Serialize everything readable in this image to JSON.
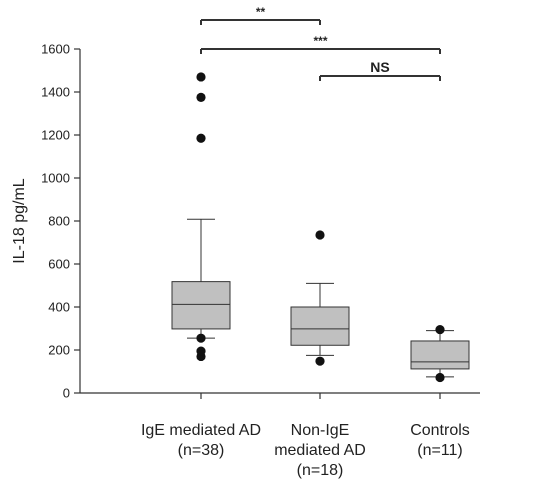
{
  "chart_data": {
    "type": "box",
    "ylabel": "IL-18 pg/mL",
    "ylim": [
      0,
      1600
    ],
    "yticks": [
      0,
      200,
      400,
      600,
      800,
      1000,
      1200,
      1400,
      1600
    ],
    "colors": {
      "box_fill": "#c0c0c0",
      "line": "#333333",
      "outlier": "#111111"
    },
    "groups": [
      {
        "label_lines": [
          "IgE mediated AD",
          "(n=38)"
        ],
        "whisker_low": 255,
        "q1": 298,
        "median": 412,
        "q3": 518,
        "whisker_high": 808,
        "outliers": [
          170,
          195,
          255,
          1185,
          1375,
          1470
        ]
      },
      {
        "label_lines": [
          "Non-IgE",
          "mediated AD",
          "(n=18)"
        ],
        "whisker_low": 175,
        "q1": 222,
        "median": 298,
        "q3": 400,
        "whisker_high": 510,
        "outliers": [
          148,
          735
        ]
      },
      {
        "label_lines": [
          "Controls",
          "(n=11)"
        ],
        "whisker_low": 75,
        "q1": 112,
        "median": 145,
        "q3": 242,
        "whisker_high": 290,
        "outliers": [
          72,
          295
        ]
      }
    ],
    "significance": [
      {
        "from": 0,
        "to": 1,
        "label": "**"
      },
      {
        "from": 0,
        "to": 2,
        "label": "***"
      },
      {
        "from": 1,
        "to": 2,
        "label": "NS"
      }
    ]
  }
}
